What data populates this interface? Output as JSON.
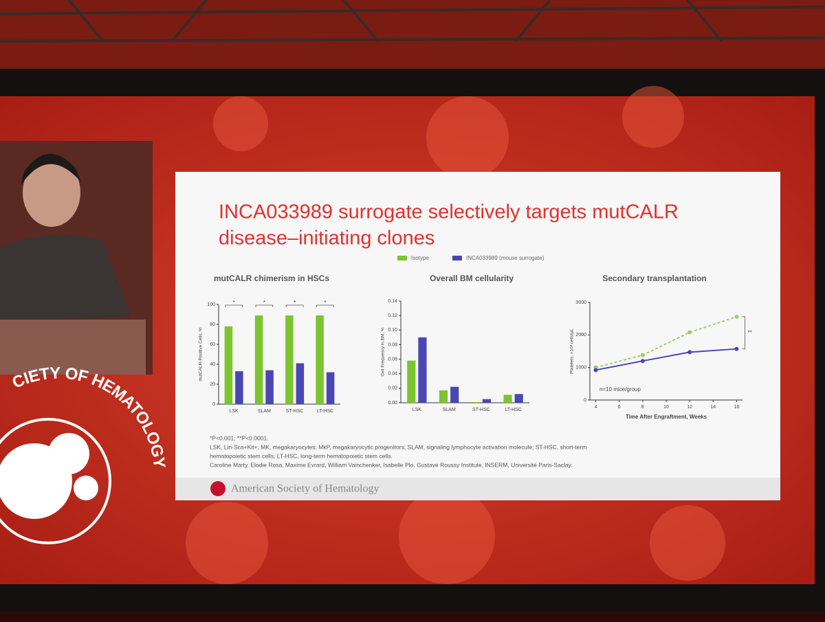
{
  "slide": {
    "title_lines": [
      "INCA033989 surrogate selectively targets mutCALR",
      "disease–initiating clones"
    ],
    "footnotes": [
      "*P<0.001; **P<0.0001.",
      "LSK, Lin-Sca+Kit+; MK, megakaryocytes; MkP, megakaryocytic progenitors; SLAM, signaling lymphocyte activation molecule; ST-HSC, short-term",
      "hematopoietic stem cells; LT-HSC, long-term hematopoietic stem cells.",
      "Caroline Marty, Elodie Rosa, Maxime Evrard, William Vainchenker, Isabelle Plo. Gustave Roussy Institute, INSERM, Université Paris-Saclay."
    ],
    "footer": "American Society of Hematology"
  },
  "logo": {
    "text": "CIETY OF HEMATOLOGY"
  },
  "chart_data": [
    {
      "type": "bar",
      "title": "mutCALR chimerism in HSCs",
      "y_label": "mutCALR-Positive Cells, %",
      "categories": [
        "LSK",
        "SLAM",
        "ST-HSC",
        "LT-HSC"
      ],
      "series": [
        {
          "name": "Isotype",
          "color": "#7cc52f",
          "values": [
            78,
            89,
            89,
            89
          ]
        },
        {
          "name": "INCA033989 (mouse surrogate)",
          "color": "#4a47b3",
          "values": [
            33,
            34,
            41,
            32
          ]
        }
      ],
      "ylim": [
        0,
        100
      ],
      "yticks": [
        0,
        20,
        40,
        60,
        80,
        100
      ],
      "annotations": [
        "*",
        "*",
        "*",
        "*"
      ]
    },
    {
      "type": "bar",
      "title": "Overall BM cellularity",
      "y_label": "Cell Frequency in BM, %",
      "categories": [
        "LSK",
        "SLAM",
        "ST-HSC",
        "LT-HSC"
      ],
      "series": [
        {
          "color": "#7cc52f",
          "values": [
            0.058,
            0.017,
            0.001,
            0.011
          ]
        },
        {
          "color": "#4a47b3",
          "values": [
            0.09,
            0.022,
            0.005,
            0.012
          ]
        }
      ],
      "ylim": [
        0,
        0.14
      ],
      "yticks": [
        {
          "value": 0,
          "label": "0.00"
        },
        {
          "value": 0.02,
          "label": "0.02"
        },
        {
          "value": 0.04,
          "label": "0.04"
        },
        {
          "value": 0.06,
          "label": "0.06"
        },
        {
          "value": 0.08,
          "label": "0.08"
        },
        {
          "value": 0.1,
          "label": "0.10"
        },
        {
          "value": 0.12,
          "label": "0.12"
        },
        {
          "value": 0.14,
          "label": "0.14"
        }
      ]
    },
    {
      "type": "line",
      "title": "Secondary transplantation",
      "x_label": "Time After Engraftment, Weeks",
      "y_label": "Platelets, ×10³ cells/μL",
      "x": [
        4,
        8,
        12,
        16
      ],
      "series": [
        {
          "color": "#9ccf6a",
          "values": [
            1000,
            1380,
            2080,
            2560
          ],
          "dashed": true
        },
        {
          "color": "#4a47b3",
          "values": [
            920,
            1200,
            1470,
            1570
          ]
        }
      ],
      "xlim": [
        3.5,
        16.5
      ],
      "xticks": [
        4,
        6,
        8,
        10,
        12,
        14,
        16
      ],
      "ylim": [
        0,
        3000
      ],
      "yticks": [
        0,
        1000,
        2000,
        3000
      ],
      "annotations": [
        "n=10 mice/group",
        "**"
      ]
    }
  ]
}
